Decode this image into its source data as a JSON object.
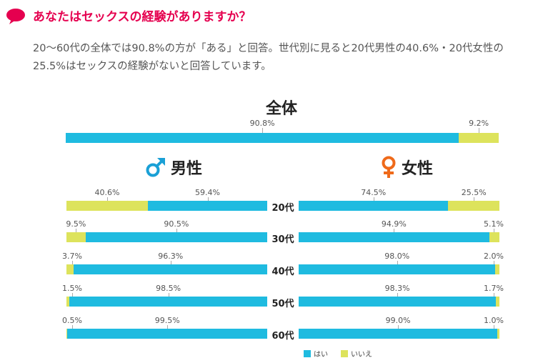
{
  "header": {
    "title": "あなたはセックスの経験がありますか？",
    "description": "20〜60代の全体では90.8%の方が「ある」と回答。世代別に見ると20代男性の40.6%・20代女性の25.5%はセックスの経験がないと回答しています。"
  },
  "colors": {
    "accent": "#e5004f",
    "yes": "#1fbbe0",
    "no": "#dde35c",
    "male": "#1aa0d6",
    "female": "#ef6a1a"
  },
  "sections": {
    "overall": "全体",
    "male": "男性",
    "female": "女性"
  },
  "legend": {
    "yes": "はい",
    "no": "いいえ"
  },
  "chart_data": [
    {
      "type": "bar",
      "orientation": "horizontal-stacked-100",
      "title": "全体",
      "series": [
        {
          "name": "はい",
          "values": [
            90.8
          ]
        },
        {
          "name": "いいえ",
          "values": [
            9.2
          ]
        }
      ],
      "labels": {
        "yes": "90.8%",
        "no": "9.2%"
      }
    },
    {
      "type": "bar",
      "orientation": "horizontal-stacked-100",
      "title": "男性",
      "categories": [
        "20代",
        "30代",
        "40代",
        "50代",
        "60代"
      ],
      "series": [
        {
          "name": "はい",
          "values": [
            59.4,
            90.5,
            96.3,
            98.5,
            99.5
          ]
        },
        {
          "name": "いいえ",
          "values": [
            40.6,
            9.5,
            3.7,
            1.5,
            0.5
          ]
        }
      ],
      "labels": {
        "yes": [
          "59.4%",
          "90.5%",
          "96.3%",
          "98.5%",
          "99.5%"
        ],
        "no": [
          "40.6%",
          "9.5%",
          "3.7%",
          "1.5%",
          "0.5%"
        ]
      }
    },
    {
      "type": "bar",
      "orientation": "horizontal-stacked-100",
      "title": "女性",
      "categories": [
        "20代",
        "30代",
        "40代",
        "50代",
        "60代"
      ],
      "series": [
        {
          "name": "はい",
          "values": [
            74.5,
            94.9,
            98.0,
            98.3,
            99.0
          ]
        },
        {
          "name": "いいえ",
          "values": [
            25.5,
            5.1,
            2.0,
            1.7,
            1.0
          ]
        }
      ],
      "labels": {
        "yes": [
          "74.5%",
          "94.9%",
          "98.0%",
          "98.3%",
          "99.0%"
        ],
        "no": [
          "25.5%",
          "5.1%",
          "2.0%",
          "1.7%",
          "1.0%"
        ]
      }
    }
  ]
}
